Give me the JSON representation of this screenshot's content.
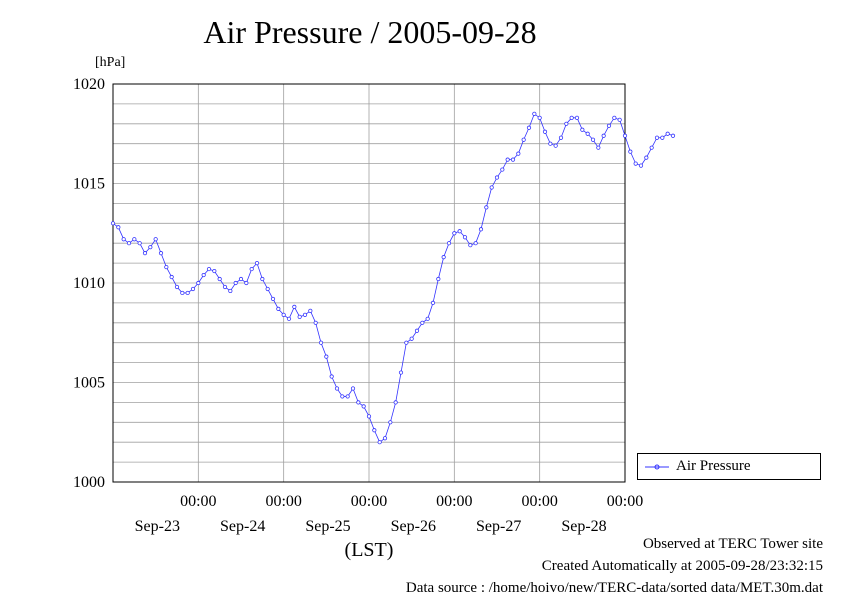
{
  "title": "Air Pressure / 2005-09-28",
  "unit_label": "[hPa]",
  "footer": {
    "observed": "Observed at TERC Tower site",
    "created": "Created Automatically at 2005-09-28/23:32:15",
    "source": "Data source : /home/hoivo/new/TERC-data/sorted  data/MET.30m.dat"
  },
  "chart_data": {
    "type": "line",
    "title": "Air Pressure / 2005-09-28",
    "ylabel": "[hPa]",
    "xlabel": "(LST)",
    "ylim": [
      1000,
      1020
    ],
    "yticks": [
      1000,
      1005,
      1010,
      1015,
      1020
    ],
    "xlim_days": [
      -1.0,
      5.0
    ],
    "x_ticks": [
      {
        "time": "00:00",
        "date": "Sep-23"
      },
      {
        "time": "00:00",
        "date": "Sep-24"
      },
      {
        "time": "00:00",
        "date": "Sep-25"
      },
      {
        "time": "00:00",
        "date": "Sep-26"
      },
      {
        "time": "00:00",
        "date": "Sep-27"
      },
      {
        "time": "00:00",
        "date": "Sep-28"
      }
    ],
    "grid": true,
    "legend_position": "right",
    "series": [
      {
        "name": "Air Pressure",
        "color": "#3333ff",
        "points": [
          [
            "2005-09-22 00:00",
            1013.0
          ],
          [
            "2005-09-22 01:30",
            1012.8
          ],
          [
            "2005-09-22 03:00",
            1012.2
          ],
          [
            "2005-09-22 04:30",
            1012.0
          ],
          [
            "2005-09-22 06:00",
            1012.2
          ],
          [
            "2005-09-22 07:30",
            1012.0
          ],
          [
            "2005-09-22 09:00",
            1011.5
          ],
          [
            "2005-09-22 10:30",
            1011.8
          ],
          [
            "2005-09-22 12:00",
            1012.2
          ],
          [
            "2005-09-22 13:30",
            1011.5
          ],
          [
            "2005-09-22 15:00",
            1010.8
          ],
          [
            "2005-09-22 16:30",
            1010.3
          ],
          [
            "2005-09-22 18:00",
            1009.8
          ],
          [
            "2005-09-22 19:30",
            1009.5
          ],
          [
            "2005-09-22 21:00",
            1009.5
          ],
          [
            "2005-09-22 22:30",
            1009.7
          ],
          [
            "2005-09-23 00:00",
            1010.0
          ],
          [
            "2005-09-23 01:30",
            1010.4
          ],
          [
            "2005-09-23 03:00",
            1010.7
          ],
          [
            "2005-09-23 04:30",
            1010.6
          ],
          [
            "2005-09-23 06:00",
            1010.2
          ],
          [
            "2005-09-23 07:30",
            1009.8
          ],
          [
            "2005-09-23 09:00",
            1009.6
          ],
          [
            "2005-09-23 10:30",
            1010.0
          ],
          [
            "2005-09-23 12:00",
            1010.2
          ],
          [
            "2005-09-23 13:30",
            1010.0
          ],
          [
            "2005-09-23 15:00",
            1010.7
          ],
          [
            "2005-09-23 16:30",
            1011.0
          ],
          [
            "2005-09-23 18:00",
            1010.2
          ],
          [
            "2005-09-23 19:30",
            1009.7
          ],
          [
            "2005-09-23 21:00",
            1009.2
          ],
          [
            "2005-09-23 22:30",
            1008.7
          ],
          [
            "2005-09-24 00:00",
            1008.4
          ],
          [
            "2005-09-24 01:30",
            1008.2
          ],
          [
            "2005-09-24 03:00",
            1008.8
          ],
          [
            "2005-09-24 04:30",
            1008.3
          ],
          [
            "2005-09-24 06:00",
            1008.4
          ],
          [
            "2005-09-24 07:30",
            1008.6
          ],
          [
            "2005-09-24 09:00",
            1008.0
          ],
          [
            "2005-09-24 10:30",
            1007.0
          ],
          [
            "2005-09-24 12:00",
            1006.3
          ],
          [
            "2005-09-24 13:30",
            1005.3
          ],
          [
            "2005-09-24 15:00",
            1004.7
          ],
          [
            "2005-09-24 16:30",
            1004.3
          ],
          [
            "2005-09-24 18:00",
            1004.3
          ],
          [
            "2005-09-24 19:30",
            1004.7
          ],
          [
            "2005-09-24 21:00",
            1004.0
          ],
          [
            "2005-09-24 22:30",
            1003.8
          ],
          [
            "2005-09-25 00:00",
            1003.3
          ],
          [
            "2005-09-25 01:30",
            1002.6
          ],
          [
            "2005-09-25 03:00",
            1002.0
          ],
          [
            "2005-09-25 04:30",
            1002.2
          ],
          [
            "2005-09-25 06:00",
            1003.0
          ],
          [
            "2005-09-25 07:30",
            1004.0
          ],
          [
            "2005-09-25 09:00",
            1005.5
          ],
          [
            "2005-09-25 10:30",
            1007.0
          ],
          [
            "2005-09-25 12:00",
            1007.2
          ],
          [
            "2005-09-25 13:30",
            1007.6
          ],
          [
            "2005-09-25 15:00",
            1008.0
          ],
          [
            "2005-09-25 16:30",
            1008.2
          ],
          [
            "2005-09-25 18:00",
            1009.0
          ],
          [
            "2005-09-25 19:30",
            1010.2
          ],
          [
            "2005-09-25 21:00",
            1011.3
          ],
          [
            "2005-09-25 22:30",
            1012.0
          ],
          [
            "2005-09-26 00:00",
            1012.5
          ],
          [
            "2005-09-26 01:30",
            1012.6
          ],
          [
            "2005-09-26 03:00",
            1012.3
          ],
          [
            "2005-09-26 04:30",
            1011.9
          ],
          [
            "2005-09-26 06:00",
            1012.0
          ],
          [
            "2005-09-26 07:30",
            1012.7
          ],
          [
            "2005-09-26 09:00",
            1013.8
          ],
          [
            "2005-09-26 10:30",
            1014.8
          ],
          [
            "2005-09-26 12:00",
            1015.3
          ],
          [
            "2005-09-26 13:30",
            1015.7
          ],
          [
            "2005-09-26 15:00",
            1016.2
          ],
          [
            "2005-09-26 16:30",
            1016.2
          ],
          [
            "2005-09-26 18:00",
            1016.5
          ],
          [
            "2005-09-26 19:30",
            1017.2
          ],
          [
            "2005-09-26 21:00",
            1017.8
          ],
          [
            "2005-09-26 22:30",
            1018.5
          ],
          [
            "2005-09-27 00:00",
            1018.3
          ],
          [
            "2005-09-27 01:30",
            1017.6
          ],
          [
            "2005-09-27 03:00",
            1017.0
          ],
          [
            "2005-09-27 04:30",
            1016.9
          ],
          [
            "2005-09-27 06:00",
            1017.3
          ],
          [
            "2005-09-27 07:30",
            1018.0
          ],
          [
            "2005-09-27 09:00",
            1018.3
          ],
          [
            "2005-09-27 10:30",
            1018.3
          ],
          [
            "2005-09-27 12:00",
            1017.7
          ],
          [
            "2005-09-27 13:30",
            1017.5
          ],
          [
            "2005-09-27 15:00",
            1017.2
          ],
          [
            "2005-09-27 16:30",
            1016.8
          ],
          [
            "2005-09-27 18:00",
            1017.4
          ],
          [
            "2005-09-27 19:30",
            1017.9
          ],
          [
            "2005-09-27 21:00",
            1018.3
          ],
          [
            "2005-09-27 22:30",
            1018.2
          ],
          [
            "2005-09-28 00:00",
            1017.4
          ],
          [
            "2005-09-28 01:30",
            1016.6
          ],
          [
            "2005-09-28 03:00",
            1016.0
          ],
          [
            "2005-09-28 04:30",
            1015.9
          ],
          [
            "2005-09-28 06:00",
            1016.3
          ],
          [
            "2005-09-28 07:30",
            1016.8
          ],
          [
            "2005-09-28 09:00",
            1017.3
          ],
          [
            "2005-09-28 10:30",
            1017.3
          ],
          [
            "2005-09-28 12:00",
            1017.5
          ],
          [
            "2005-09-28 13:30",
            1017.4
          ]
        ]
      }
    ]
  }
}
